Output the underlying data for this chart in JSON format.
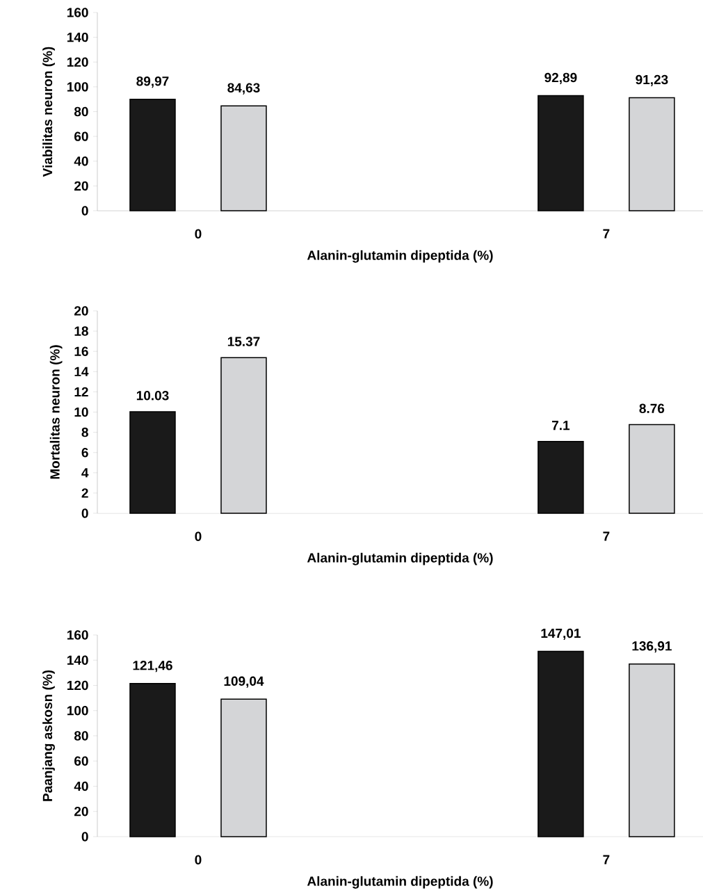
{
  "chart_data": [
    {
      "type": "bar",
      "categories": [
        "0",
        "7"
      ],
      "xlabel": "Alanin-glutamin dipeptida (%)",
      "ylabel": "Viabilitas neuron (%)",
      "ylim": [
        0,
        160
      ],
      "yticks": [
        0,
        20,
        40,
        60,
        80,
        100,
        120,
        140,
        160
      ],
      "series": [
        {
          "color": "#1a1a1a",
          "values": [
            89.97,
            92.89
          ],
          "value_labels": [
            "89,97",
            "92,89"
          ]
        },
        {
          "color": "#d4d5d7",
          "values": [
            84.63,
            91.23
          ],
          "value_labels": [
            "84,63",
            "91,23"
          ]
        }
      ]
    },
    {
      "type": "bar",
      "categories": [
        "0",
        "7"
      ],
      "xlabel": "Alanin-glutamin dipeptida (%)",
      "ylabel": "Mortalitas neuron (%)",
      "ylim": [
        0,
        20
      ],
      "yticks": [
        0,
        2,
        4,
        6,
        8,
        10,
        12,
        14,
        16,
        18,
        20
      ],
      "series": [
        {
          "color": "#1a1a1a",
          "values": [
            10.03,
            7.1
          ],
          "value_labels": [
            "10.03",
            "7.1"
          ]
        },
        {
          "color": "#d4d5d7",
          "values": [
            15.37,
            8.76
          ],
          "value_labels": [
            "15.37",
            "8.76"
          ]
        }
      ]
    },
    {
      "type": "bar",
      "categories": [
        "0",
        "7"
      ],
      "xlabel": "Alanin-glutamin dipeptida (%)",
      "ylabel": "Paanjang  askosn  (%)",
      "ylim": [
        0,
        160
      ],
      "yticks": [
        0,
        20,
        40,
        60,
        80,
        100,
        120,
        140,
        160
      ],
      "series": [
        {
          "color": "#1a1a1a",
          "values": [
            121.46,
            147.01
          ],
          "value_labels": [
            "121,46",
            "147,01"
          ]
        },
        {
          "color": "#d4d5d7",
          "values": [
            109.04,
            136.91
          ],
          "value_labels": [
            "109,04",
            "136,91"
          ]
        }
      ]
    }
  ]
}
